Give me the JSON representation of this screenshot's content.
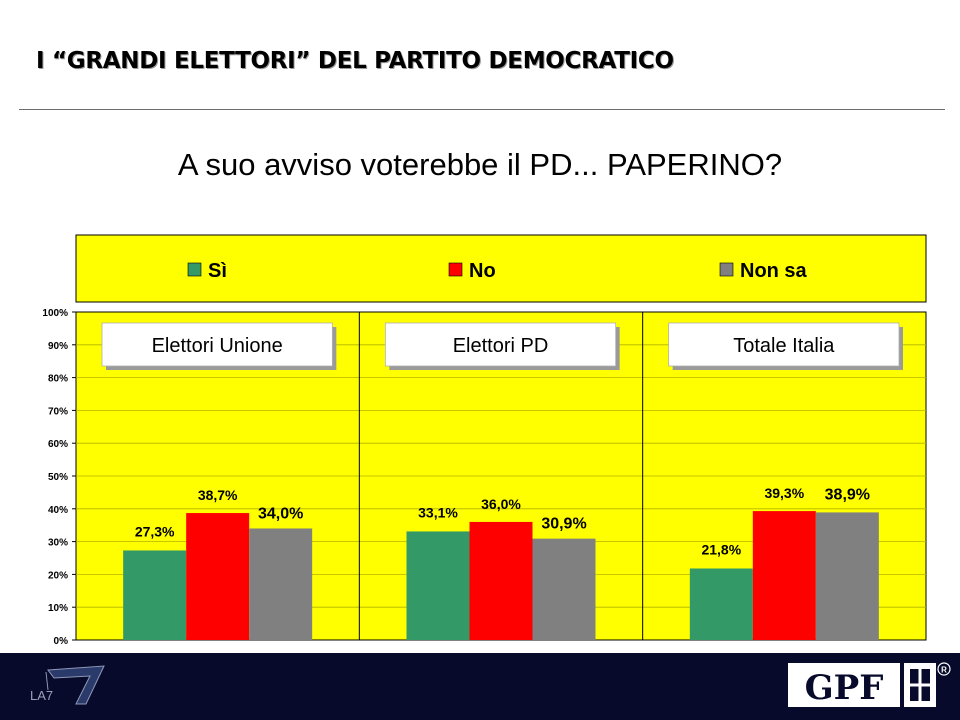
{
  "slide": {
    "title": "I “GRANDI ELETTORI” DEL PARTITO DEMOCRATICO",
    "question": "A suo avviso voterebbe il PD... PAPERINO?"
  },
  "logos": {
    "left": "LA7",
    "right": "GPF"
  },
  "colors": {
    "plot_background": "#ffff00",
    "legend_background": "#ffff00",
    "footer_background": "#070a2a",
    "series": [
      "#339966",
      "#ff0000",
      "#808080"
    ]
  },
  "chart_data": {
    "type": "bar",
    "title": "A suo avviso voterebbe il PD... PAPERINO?",
    "categories": [
      "Elettori Unione",
      "Elettori PD",
      "Totale Italia"
    ],
    "series": [
      {
        "name": "Sì",
        "values": [
          27.3,
          33.1,
          21.8
        ],
        "labels": [
          "27,3%",
          "33,1%",
          "21,8%"
        ]
      },
      {
        "name": "No",
        "values": [
          38.7,
          36.0,
          39.3
        ],
        "labels": [
          "38,7%",
          "36,0%",
          "39,3%"
        ]
      },
      {
        "name": "Non sa",
        "values": [
          34.0,
          30.9,
          38.9
        ],
        "labels": [
          "34,0%",
          "30,9%",
          "38,9%"
        ]
      }
    ],
    "ylim": [
      0,
      100
    ],
    "y_ticks": [
      "0%",
      "10%",
      "20%",
      "30%",
      "40%",
      "50%",
      "60%",
      "70%",
      "80%",
      "90%",
      "100%"
    ],
    "grid": true,
    "legend_position": "top"
  }
}
